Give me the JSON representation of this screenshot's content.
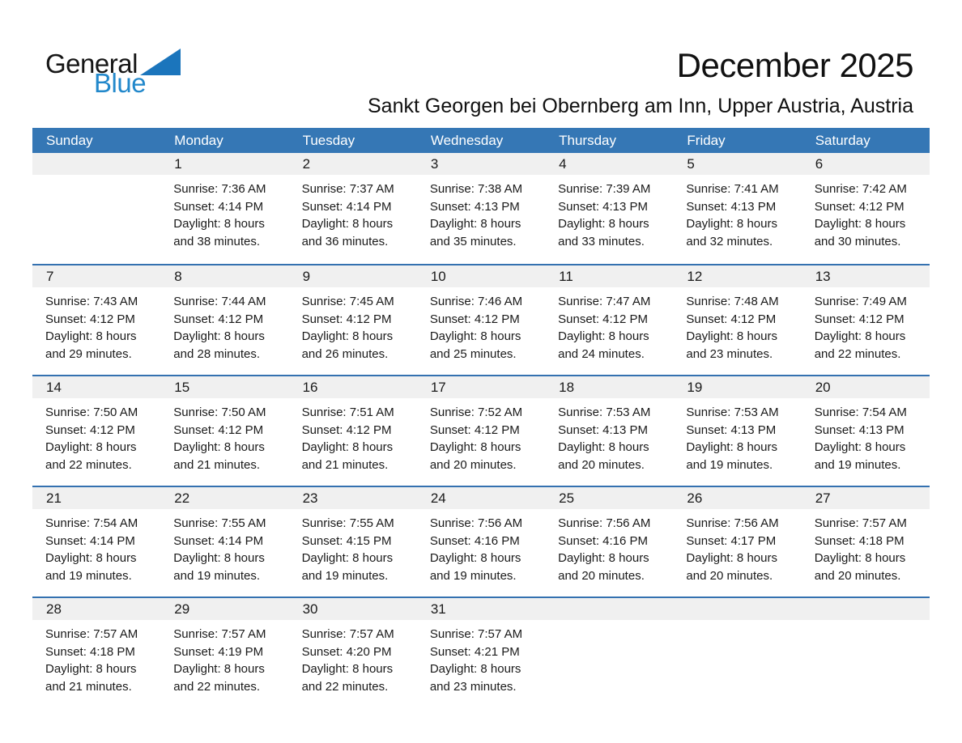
{
  "logo": {
    "part1": "General",
    "part2": "Blue"
  },
  "header": {
    "title": "December 2025",
    "subtitle": "Sankt Georgen bei Obernberg am Inn, Upper Austria, Austria"
  },
  "weekdays": [
    "Sunday",
    "Monday",
    "Tuesday",
    "Wednesday",
    "Thursday",
    "Friday",
    "Saturday"
  ],
  "colors": {
    "header_bg": "#3577b5",
    "divider": "#3471b0",
    "day_band": "#f0f0f0",
    "logo_blue": "#2288cb",
    "logo_triangle": "#1b75bc"
  },
  "weeks": [
    [
      null,
      {
        "day": "1",
        "sunrise": "Sunrise: 7:36 AM",
        "sunset": "Sunset: 4:14 PM",
        "daylight1": "Daylight: 8 hours",
        "daylight2": "and 38 minutes."
      },
      {
        "day": "2",
        "sunrise": "Sunrise: 7:37 AM",
        "sunset": "Sunset: 4:14 PM",
        "daylight1": "Daylight: 8 hours",
        "daylight2": "and 36 minutes."
      },
      {
        "day": "3",
        "sunrise": "Sunrise: 7:38 AM",
        "sunset": "Sunset: 4:13 PM",
        "daylight1": "Daylight: 8 hours",
        "daylight2": "and 35 minutes."
      },
      {
        "day": "4",
        "sunrise": "Sunrise: 7:39 AM",
        "sunset": "Sunset: 4:13 PM",
        "daylight1": "Daylight: 8 hours",
        "daylight2": "and 33 minutes."
      },
      {
        "day": "5",
        "sunrise": "Sunrise: 7:41 AM",
        "sunset": "Sunset: 4:13 PM",
        "daylight1": "Daylight: 8 hours",
        "daylight2": "and 32 minutes."
      },
      {
        "day": "6",
        "sunrise": "Sunrise: 7:42 AM",
        "sunset": "Sunset: 4:12 PM",
        "daylight1": "Daylight: 8 hours",
        "daylight2": "and 30 minutes."
      }
    ],
    [
      {
        "day": "7",
        "sunrise": "Sunrise: 7:43 AM",
        "sunset": "Sunset: 4:12 PM",
        "daylight1": "Daylight: 8 hours",
        "daylight2": "and 29 minutes."
      },
      {
        "day": "8",
        "sunrise": "Sunrise: 7:44 AM",
        "sunset": "Sunset: 4:12 PM",
        "daylight1": "Daylight: 8 hours",
        "daylight2": "and 28 minutes."
      },
      {
        "day": "9",
        "sunrise": "Sunrise: 7:45 AM",
        "sunset": "Sunset: 4:12 PM",
        "daylight1": "Daylight: 8 hours",
        "daylight2": "and 26 minutes."
      },
      {
        "day": "10",
        "sunrise": "Sunrise: 7:46 AM",
        "sunset": "Sunset: 4:12 PM",
        "daylight1": "Daylight: 8 hours",
        "daylight2": "and 25 minutes."
      },
      {
        "day": "11",
        "sunrise": "Sunrise: 7:47 AM",
        "sunset": "Sunset: 4:12 PM",
        "daylight1": "Daylight: 8 hours",
        "daylight2": "and 24 minutes."
      },
      {
        "day": "12",
        "sunrise": "Sunrise: 7:48 AM",
        "sunset": "Sunset: 4:12 PM",
        "daylight1": "Daylight: 8 hours",
        "daylight2": "and 23 minutes."
      },
      {
        "day": "13",
        "sunrise": "Sunrise: 7:49 AM",
        "sunset": "Sunset: 4:12 PM",
        "daylight1": "Daylight: 8 hours",
        "daylight2": "and 22 minutes."
      }
    ],
    [
      {
        "day": "14",
        "sunrise": "Sunrise: 7:50 AM",
        "sunset": "Sunset: 4:12 PM",
        "daylight1": "Daylight: 8 hours",
        "daylight2": "and 22 minutes."
      },
      {
        "day": "15",
        "sunrise": "Sunrise: 7:50 AM",
        "sunset": "Sunset: 4:12 PM",
        "daylight1": "Daylight: 8 hours",
        "daylight2": "and 21 minutes."
      },
      {
        "day": "16",
        "sunrise": "Sunrise: 7:51 AM",
        "sunset": "Sunset: 4:12 PM",
        "daylight1": "Daylight: 8 hours",
        "daylight2": "and 21 minutes."
      },
      {
        "day": "17",
        "sunrise": "Sunrise: 7:52 AM",
        "sunset": "Sunset: 4:12 PM",
        "daylight1": "Daylight: 8 hours",
        "daylight2": "and 20 minutes."
      },
      {
        "day": "18",
        "sunrise": "Sunrise: 7:53 AM",
        "sunset": "Sunset: 4:13 PM",
        "daylight1": "Daylight: 8 hours",
        "daylight2": "and 20 minutes."
      },
      {
        "day": "19",
        "sunrise": "Sunrise: 7:53 AM",
        "sunset": "Sunset: 4:13 PM",
        "daylight1": "Daylight: 8 hours",
        "daylight2": "and 19 minutes."
      },
      {
        "day": "20",
        "sunrise": "Sunrise: 7:54 AM",
        "sunset": "Sunset: 4:13 PM",
        "daylight1": "Daylight: 8 hours",
        "daylight2": "and 19 minutes."
      }
    ],
    [
      {
        "day": "21",
        "sunrise": "Sunrise: 7:54 AM",
        "sunset": "Sunset: 4:14 PM",
        "daylight1": "Daylight: 8 hours",
        "daylight2": "and 19 minutes."
      },
      {
        "day": "22",
        "sunrise": "Sunrise: 7:55 AM",
        "sunset": "Sunset: 4:14 PM",
        "daylight1": "Daylight: 8 hours",
        "daylight2": "and 19 minutes."
      },
      {
        "day": "23",
        "sunrise": "Sunrise: 7:55 AM",
        "sunset": "Sunset: 4:15 PM",
        "daylight1": "Daylight: 8 hours",
        "daylight2": "and 19 minutes."
      },
      {
        "day": "24",
        "sunrise": "Sunrise: 7:56 AM",
        "sunset": "Sunset: 4:16 PM",
        "daylight1": "Daylight: 8 hours",
        "daylight2": "and 19 minutes."
      },
      {
        "day": "25",
        "sunrise": "Sunrise: 7:56 AM",
        "sunset": "Sunset: 4:16 PM",
        "daylight1": "Daylight: 8 hours",
        "daylight2": "and 20 minutes."
      },
      {
        "day": "26",
        "sunrise": "Sunrise: 7:56 AM",
        "sunset": "Sunset: 4:17 PM",
        "daylight1": "Daylight: 8 hours",
        "daylight2": "and 20 minutes."
      },
      {
        "day": "27",
        "sunrise": "Sunrise: 7:57 AM",
        "sunset": "Sunset: 4:18 PM",
        "daylight1": "Daylight: 8 hours",
        "daylight2": "and 20 minutes."
      }
    ],
    [
      {
        "day": "28",
        "sunrise": "Sunrise: 7:57 AM",
        "sunset": "Sunset: 4:18 PM",
        "daylight1": "Daylight: 8 hours",
        "daylight2": "and 21 minutes."
      },
      {
        "day": "29",
        "sunrise": "Sunrise: 7:57 AM",
        "sunset": "Sunset: 4:19 PM",
        "daylight1": "Daylight: 8 hours",
        "daylight2": "and 22 minutes."
      },
      {
        "day": "30",
        "sunrise": "Sunrise: 7:57 AM",
        "sunset": "Sunset: 4:20 PM",
        "daylight1": "Daylight: 8 hours",
        "daylight2": "and 22 minutes."
      },
      {
        "day": "31",
        "sunrise": "Sunrise: 7:57 AM",
        "sunset": "Sunset: 4:21 PM",
        "daylight1": "Daylight: 8 hours",
        "daylight2": "and 23 minutes."
      },
      null,
      null,
      null
    ]
  ]
}
